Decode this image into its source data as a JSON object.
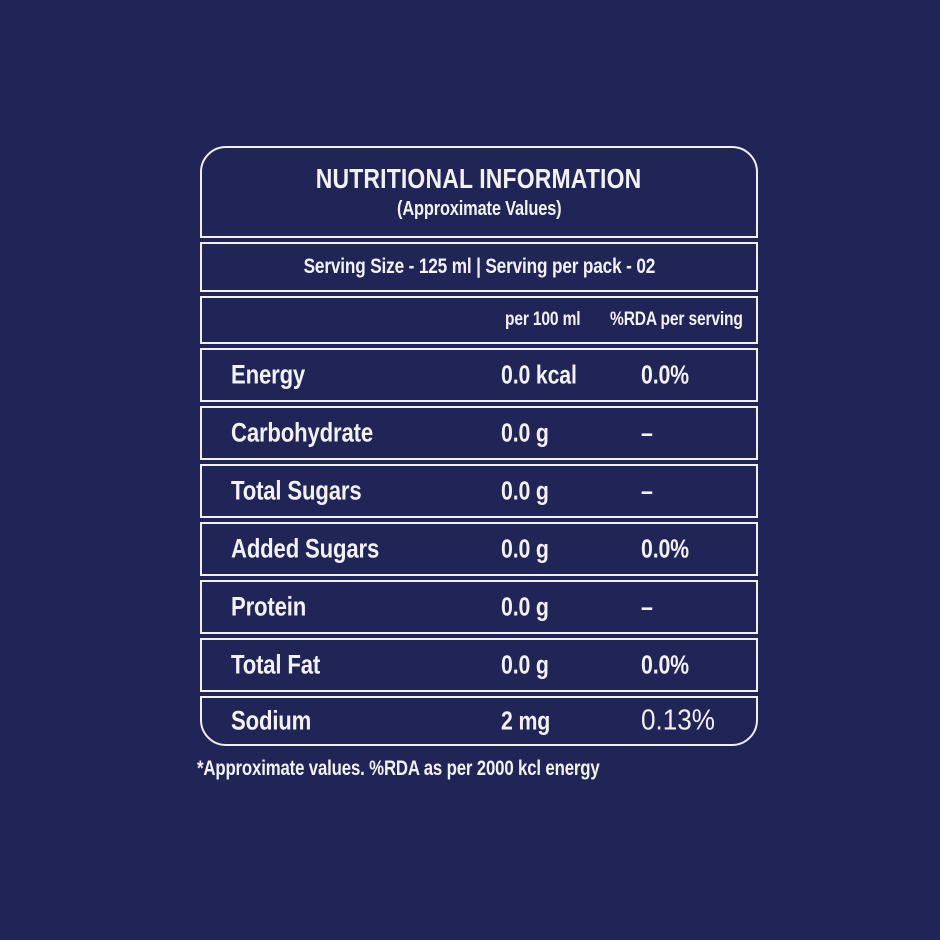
{
  "colors": {
    "background": "#212456",
    "panel_border": "#F0EFF4",
    "text": "#F2F1F6"
  },
  "label": {
    "title": "NUTRITIONAL INFORMATION",
    "subtitle": "(Approximate Values)",
    "serving_line": "Serving Size - 125 ml | Serving per pack - 02",
    "columns": {
      "amount": "per 100 ml",
      "rda": "%RDA per serving"
    },
    "rows": [
      {
        "nutrient": "Energy",
        "amount": "0.0 kcal",
        "rda": "0.0%"
      },
      {
        "nutrient": "Carbohydrate",
        "amount": "0.0 g",
        "rda": "–"
      },
      {
        "nutrient": "Total Sugars",
        "amount": "0.0 g",
        "rda": "–"
      },
      {
        "nutrient": "Added Sugars",
        "amount": "0.0 g",
        "rda": "0.0%"
      },
      {
        "nutrient": "Protein",
        "amount": "0.0 g",
        "rda": "–"
      },
      {
        "nutrient": "Total Fat",
        "amount": "0.0 g",
        "rda": "0.0%"
      },
      {
        "nutrient": "Sodium",
        "amount": "2 mg",
        "rda": "0.13%"
      }
    ],
    "footnote": "*Approximate values. %RDA as per 2000 kcl energy"
  }
}
